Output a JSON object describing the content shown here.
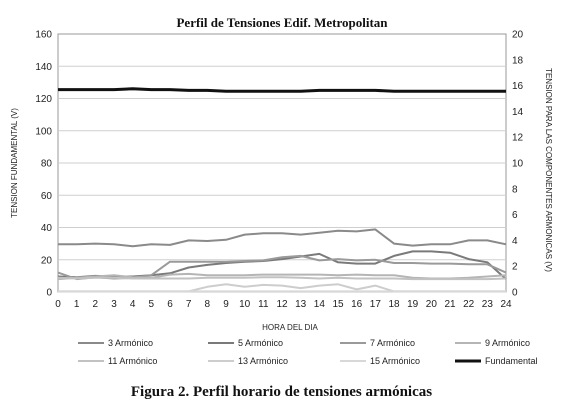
{
  "caption": "Figura 2. Perfil horario de tensiones armónicas",
  "chart_data": {
    "type": "line",
    "title": "Perfil de Tensiones Edif. Metropolitan",
    "xlabel": "HORA DEL DIA",
    "ylabel_left": "TENSION FUNDAMENTAL (V)",
    "ylabel_right": "TENSION PARA LAS COMPONENTES ARMONICAS  (V)",
    "x": [
      0,
      1,
      2,
      3,
      4,
      5,
      6,
      7,
      8,
      9,
      10,
      11,
      12,
      13,
      14,
      15,
      16,
      17,
      18,
      19,
      20,
      21,
      22,
      23,
      24
    ],
    "xlim": [
      0,
      24
    ],
    "ylim_left": [
      0,
      160
    ],
    "ylim_right": [
      0,
      20
    ],
    "yticks_left": [
      0,
      20,
      40,
      60,
      80,
      100,
      120,
      140,
      160
    ],
    "yticks_right": [
      0,
      2,
      4,
      6,
      8,
      10,
      12,
      14,
      16,
      18,
      20
    ],
    "grid": true,
    "legend_position": "bottom",
    "series": [
      {
        "name": "3 Armónico",
        "axis": "right",
        "color": "#8a8a8a",
        "width": 2,
        "values": [
          3.7,
          3.7,
          3.75,
          3.7,
          3.55,
          3.7,
          3.65,
          4.0,
          3.95,
          4.05,
          4.45,
          4.55,
          4.55,
          4.45,
          4.6,
          4.75,
          4.7,
          4.85,
          3.75,
          3.6,
          3.7,
          3.7,
          4.0,
          4.0,
          3.7
        ]
      },
      {
        "name": "5 Armónico",
        "axis": "right",
        "color": "#7a7a7a",
        "width": 2,
        "values": [
          1.2,
          1.15,
          1.25,
          1.2,
          1.2,
          1.3,
          1.45,
          1.9,
          2.1,
          2.25,
          2.35,
          2.4,
          2.55,
          2.75,
          2.95,
          2.3,
          2.2,
          2.2,
          2.8,
          3.15,
          3.15,
          3.05,
          2.55,
          2.3,
          1.0
        ]
      },
      {
        "name": "7 Armónico",
        "axis": "right",
        "color": "#9a9a9a",
        "width": 2,
        "values": [
          1.5,
          1.0,
          1.15,
          1.05,
          1.1,
          1.3,
          2.35,
          2.35,
          2.35,
          2.35,
          2.4,
          2.45,
          2.7,
          2.8,
          2.45,
          2.55,
          2.45,
          2.5,
          2.25,
          2.25,
          2.2,
          2.2,
          2.15,
          2.15,
          1.5
        ]
      },
      {
        "name": "9 Armónico",
        "axis": "right",
        "color": "#b5b5b5",
        "width": 2,
        "values": [
          1.0,
          1.1,
          1.2,
          1.3,
          1.15,
          1.1,
          1.35,
          1.4,
          1.3,
          1.3,
          1.3,
          1.35,
          1.35,
          1.35,
          1.35,
          1.3,
          1.35,
          1.3,
          1.3,
          1.1,
          1.05,
          1.05,
          1.1,
          1.2,
          1.3
        ]
      },
      {
        "name": "11 Armónico",
        "axis": "right",
        "color": "#c2c2c2",
        "width": 2,
        "values": [
          1.1,
          1.05,
          1.1,
          1.1,
          1.05,
          1.05,
          1.05,
          1.05,
          1.1,
          1.1,
          1.1,
          1.15,
          1.15,
          1.1,
          1.05,
          1.1,
          1.05,
          1.05,
          1.05,
          1.0,
          1.0,
          1.0,
          1.0,
          1.0,
          1.05
        ]
      },
      {
        "name": "13 Armónico",
        "axis": "right",
        "color": "#cdcdcd",
        "width": 2,
        "values": [
          0.05,
          0.05,
          0.05,
          0.05,
          0.05,
          0.05,
          0.05,
          0.05,
          0.4,
          0.6,
          0.4,
          0.55,
          0.5,
          0.3,
          0.5,
          0.6,
          0.2,
          0.5,
          0.05,
          0.05,
          0.05,
          0.05,
          0.05,
          0.05,
          0.05
        ]
      },
      {
        "name": "15 Armónico",
        "axis": "right",
        "color": "#d8d8d8",
        "width": 2,
        "values": [
          0.05,
          0.05,
          0.05,
          0.05,
          0.05,
          0.05,
          0.05,
          0.05,
          0.05,
          0.05,
          0.05,
          0.05,
          0.05,
          0.05,
          0.05,
          0.05,
          0.05,
          0.05,
          0.05,
          0.05,
          0.05,
          0.05,
          0.05,
          0.05,
          0.05
        ]
      },
      {
        "name": "Fundamental",
        "axis": "left",
        "color": "#111111",
        "width": 3,
        "values": [
          125.5,
          125.5,
          125.5,
          125.5,
          126,
          125.5,
          125.5,
          125,
          125,
          124.5,
          124.5,
          124.5,
          124.5,
          124.5,
          125,
          125,
          125,
          125,
          124.5,
          124.5,
          124.5,
          124.5,
          124.5,
          124.5,
          124.5
        ]
      }
    ]
  }
}
